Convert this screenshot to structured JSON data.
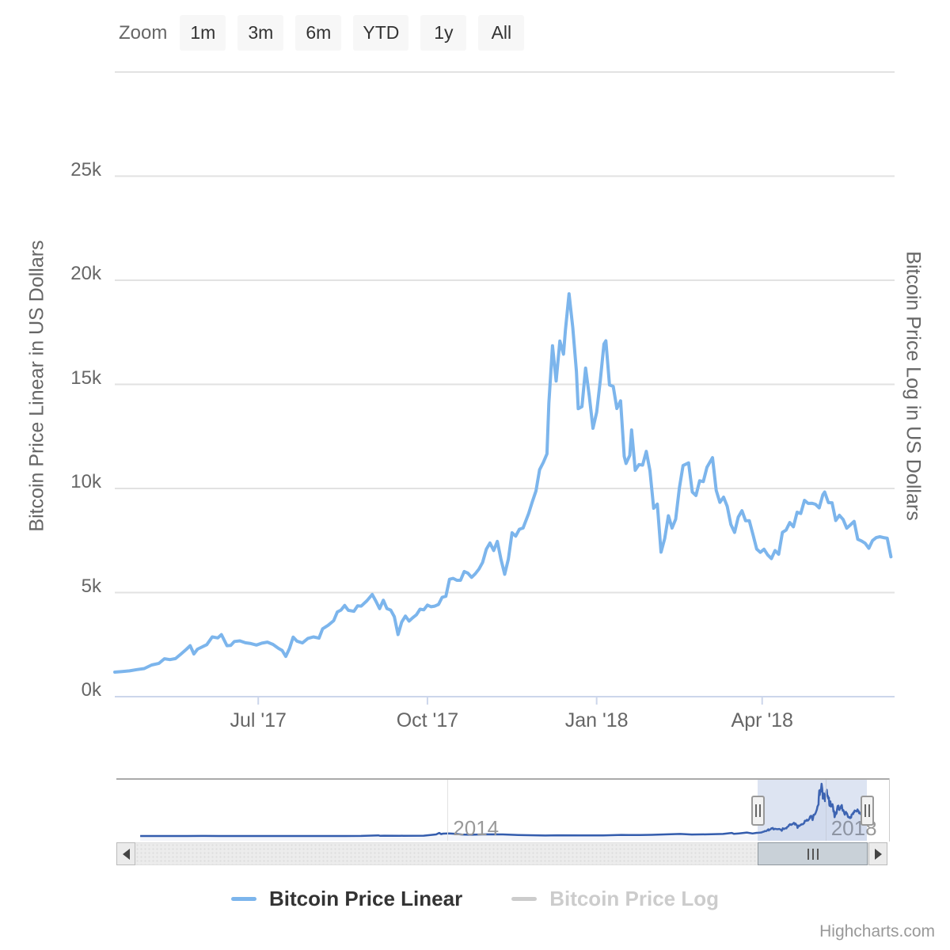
{
  "toolbar": {
    "zoom_label": "Zoom",
    "buttons": [
      "1m",
      "3m",
      "6m",
      "YTD",
      "1y",
      "All"
    ]
  },
  "legend": {
    "items": [
      {
        "label": "Bitcoin Price Linear",
        "color": "#7cb5ec",
        "text_color": "#333333",
        "enabled": true
      },
      {
        "label": "Bitcoin Price Log",
        "color": "#cccccc",
        "text_color": "#cccccc",
        "enabled": false
      }
    ]
  },
  "credits": {
    "label": "Highcharts.com"
  },
  "colors": {
    "series_line": "#7cb5ec",
    "navigator_line": "#335cad",
    "navigator_fill": "rgba(51,92,173,0.06)",
    "gridline": "#e2e2e2",
    "axis_line": "#ccd6eb",
    "label_text": "#666666"
  },
  "chart_data": {
    "type": "line",
    "title": "",
    "ylabel_left": "Bitcoin Price Linear in US Dollars",
    "ylabel_right": "Bitcoin Price Log in US Dollars",
    "y_unit": "thousand USD",
    "ylim_k": [
      0,
      30
    ],
    "y_tick_labels": [
      "0k",
      "5k",
      "10k",
      "15k",
      "20k",
      "25k"
    ],
    "y_ticks_k": [
      0,
      5,
      10,
      15,
      20,
      25
    ],
    "y_gridlines_k": [
      5,
      10,
      15,
      20,
      25,
      30
    ],
    "grid": true,
    "x_axis": {
      "range": [
        "2017-04-14",
        "2018-06-12"
      ],
      "tick_dates": [
        "2017-07-01",
        "2017-10-01",
        "2018-01-01",
        "2018-04-01"
      ],
      "tick_labels": [
        "Jul '17",
        "Oct '17",
        "Jan '18",
        "Apr '18"
      ]
    },
    "series": [
      {
        "name": "Bitcoin Price Linear",
        "color": "#7cb5ec",
        "visible": true,
        "points": [
          [
            "2017-04-14",
            1.18
          ],
          [
            "2017-04-18",
            1.21
          ],
          [
            "2017-04-22",
            1.24
          ],
          [
            "2017-04-26",
            1.3
          ],
          [
            "2017-04-30",
            1.35
          ],
          [
            "2017-05-04",
            1.52
          ],
          [
            "2017-05-08",
            1.6
          ],
          [
            "2017-05-11",
            1.82
          ],
          [
            "2017-05-14",
            1.78
          ],
          [
            "2017-05-17",
            1.83
          ],
          [
            "2017-05-20",
            2.05
          ],
          [
            "2017-05-23",
            2.28
          ],
          [
            "2017-05-25",
            2.45
          ],
          [
            "2017-05-27",
            2.05
          ],
          [
            "2017-05-29",
            2.28
          ],
          [
            "2017-06-01",
            2.41
          ],
          [
            "2017-06-03",
            2.5
          ],
          [
            "2017-06-06",
            2.87
          ],
          [
            "2017-06-09",
            2.82
          ],
          [
            "2017-06-11",
            2.98
          ],
          [
            "2017-06-14",
            2.45
          ],
          [
            "2017-06-16",
            2.46
          ],
          [
            "2017-06-18",
            2.65
          ],
          [
            "2017-06-21",
            2.68
          ],
          [
            "2017-06-24",
            2.59
          ],
          [
            "2017-06-27",
            2.55
          ],
          [
            "2017-06-30",
            2.48
          ],
          [
            "2017-07-03",
            2.57
          ],
          [
            "2017-07-06",
            2.62
          ],
          [
            "2017-07-09",
            2.51
          ],
          [
            "2017-07-12",
            2.32
          ],
          [
            "2017-07-14",
            2.22
          ],
          [
            "2017-07-16",
            1.93
          ],
          [
            "2017-07-18",
            2.32
          ],
          [
            "2017-07-20",
            2.86
          ],
          [
            "2017-07-22",
            2.67
          ],
          [
            "2017-07-25",
            2.58
          ],
          [
            "2017-07-28",
            2.8
          ],
          [
            "2017-07-31",
            2.87
          ],
          [
            "2017-08-03",
            2.81
          ],
          [
            "2017-08-05",
            3.26
          ],
          [
            "2017-08-08",
            3.43
          ],
          [
            "2017-08-11",
            3.65
          ],
          [
            "2017-08-13",
            4.07
          ],
          [
            "2017-08-15",
            4.16
          ],
          [
            "2017-08-17",
            4.38
          ],
          [
            "2017-08-19",
            4.15
          ],
          [
            "2017-08-22",
            4.1
          ],
          [
            "2017-08-24",
            4.36
          ],
          [
            "2017-08-26",
            4.35
          ],
          [
            "2017-08-29",
            4.6
          ],
          [
            "2017-09-01",
            4.91
          ],
          [
            "2017-09-03",
            4.58
          ],
          [
            "2017-09-05",
            4.23
          ],
          [
            "2017-09-07",
            4.63
          ],
          [
            "2017-09-09",
            4.23
          ],
          [
            "2017-09-11",
            4.16
          ],
          [
            "2017-09-13",
            3.84
          ],
          [
            "2017-09-15",
            2.98
          ],
          [
            "2017-09-17",
            3.58
          ],
          [
            "2017-09-19",
            3.87
          ],
          [
            "2017-09-21",
            3.63
          ],
          [
            "2017-09-23",
            3.79
          ],
          [
            "2017-09-25",
            3.93
          ],
          [
            "2017-09-27",
            4.2
          ],
          [
            "2017-09-29",
            4.17
          ],
          [
            "2017-10-01",
            4.4
          ],
          [
            "2017-10-03",
            4.32
          ],
          [
            "2017-10-05",
            4.35
          ],
          [
            "2017-10-07",
            4.43
          ],
          [
            "2017-10-09",
            4.77
          ],
          [
            "2017-10-11",
            4.82
          ],
          [
            "2017-10-13",
            5.64
          ],
          [
            "2017-10-15",
            5.68
          ],
          [
            "2017-10-17",
            5.59
          ],
          [
            "2017-10-19",
            5.59
          ],
          [
            "2017-10-21",
            6.01
          ],
          [
            "2017-10-23",
            5.93
          ],
          [
            "2017-10-25",
            5.73
          ],
          [
            "2017-10-27",
            5.9
          ],
          [
            "2017-10-29",
            6.13
          ],
          [
            "2017-10-31",
            6.45
          ],
          [
            "2017-11-02",
            7.08
          ],
          [
            "2017-11-04",
            7.38
          ],
          [
            "2017-11-06",
            7.02
          ],
          [
            "2017-11-08",
            7.46
          ],
          [
            "2017-11-10",
            6.58
          ],
          [
            "2017-11-12",
            5.88
          ],
          [
            "2017-11-14",
            6.6
          ],
          [
            "2017-11-16",
            7.87
          ],
          [
            "2017-11-18",
            7.71
          ],
          [
            "2017-11-20",
            8.04
          ],
          [
            "2017-11-22",
            8.1
          ],
          [
            "2017-11-25",
            8.79
          ],
          [
            "2017-11-27",
            9.35
          ],
          [
            "2017-11-29",
            9.88
          ],
          [
            "2017-12-01",
            10.9
          ],
          [
            "2017-12-03",
            11.25
          ],
          [
            "2017-12-05",
            11.66
          ],
          [
            "2017-12-06",
            14.09
          ],
          [
            "2017-12-08",
            16.85
          ],
          [
            "2017-12-10",
            15.16
          ],
          [
            "2017-12-12",
            17.08
          ],
          [
            "2017-12-14",
            16.45
          ],
          [
            "2017-12-15",
            17.6
          ],
          [
            "2017-12-17",
            19.35
          ],
          [
            "2017-12-19",
            17.73
          ],
          [
            "2017-12-21",
            15.63
          ],
          [
            "2017-12-22",
            13.83
          ],
          [
            "2017-12-24",
            13.93
          ],
          [
            "2017-12-26",
            15.78
          ],
          [
            "2017-12-28",
            14.43
          ],
          [
            "2017-12-30",
            12.89
          ],
          [
            "2018-01-01",
            13.66
          ],
          [
            "2018-01-03",
            15.2
          ],
          [
            "2018-01-05",
            16.94
          ],
          [
            "2018-01-06",
            17.09
          ],
          [
            "2018-01-08",
            14.97
          ],
          [
            "2018-01-10",
            14.9
          ],
          [
            "2018-01-12",
            13.84
          ],
          [
            "2018-01-14",
            14.21
          ],
          [
            "2018-01-16",
            11.54
          ],
          [
            "2018-01-17",
            11.2
          ],
          [
            "2018-01-19",
            11.59
          ],
          [
            "2018-01-20",
            12.81
          ],
          [
            "2018-01-22",
            10.87
          ],
          [
            "2018-01-24",
            11.15
          ],
          [
            "2018-01-26",
            11.12
          ],
          [
            "2018-01-28",
            11.78
          ],
          [
            "2018-01-30",
            10.85
          ],
          [
            "2018-02-01",
            9.05
          ],
          [
            "2018-02-03",
            9.25
          ],
          [
            "2018-02-05",
            6.94
          ],
          [
            "2018-02-07",
            7.59
          ],
          [
            "2018-02-09",
            8.69
          ],
          [
            "2018-02-11",
            8.1
          ],
          [
            "2018-02-13",
            8.53
          ],
          [
            "2018-02-15",
            10.03
          ],
          [
            "2018-02-17",
            11.1
          ],
          [
            "2018-02-20",
            11.23
          ],
          [
            "2018-02-22",
            9.83
          ],
          [
            "2018-02-24",
            9.66
          ],
          [
            "2018-02-26",
            10.37
          ],
          [
            "2018-02-28",
            10.33
          ],
          [
            "2018-03-02",
            11.02
          ],
          [
            "2018-03-05",
            11.48
          ],
          [
            "2018-03-07",
            9.91
          ],
          [
            "2018-03-09",
            9.33
          ],
          [
            "2018-03-11",
            9.58
          ],
          [
            "2018-03-13",
            9.14
          ],
          [
            "2018-03-15",
            8.27
          ],
          [
            "2018-03-17",
            7.89
          ],
          [
            "2018-03-19",
            8.62
          ],
          [
            "2018-03-21",
            8.93
          ],
          [
            "2018-03-23",
            8.45
          ],
          [
            "2018-03-25",
            8.45
          ],
          [
            "2018-03-27",
            7.79
          ],
          [
            "2018-03-29",
            7.09
          ],
          [
            "2018-03-31",
            6.93
          ],
          [
            "2018-04-02",
            7.08
          ],
          [
            "2018-04-04",
            6.81
          ],
          [
            "2018-04-06",
            6.63
          ],
          [
            "2018-04-08",
            7.02
          ],
          [
            "2018-04-10",
            6.84
          ],
          [
            "2018-04-12",
            7.89
          ],
          [
            "2018-04-14",
            8.0
          ],
          [
            "2018-04-16",
            8.36
          ],
          [
            "2018-04-18",
            8.16
          ],
          [
            "2018-04-20",
            8.86
          ],
          [
            "2018-04-22",
            8.8
          ],
          [
            "2018-04-24",
            9.43
          ],
          [
            "2018-04-26",
            9.28
          ],
          [
            "2018-04-28",
            9.29
          ],
          [
            "2018-04-30",
            9.24
          ],
          [
            "2018-05-02",
            9.07
          ],
          [
            "2018-05-04",
            9.7
          ],
          [
            "2018-05-05",
            9.83
          ],
          [
            "2018-05-07",
            9.32
          ],
          [
            "2018-05-09",
            9.31
          ],
          [
            "2018-05-11",
            8.46
          ],
          [
            "2018-05-13",
            8.71
          ],
          [
            "2018-05-15",
            8.51
          ],
          [
            "2018-05-17",
            8.09
          ],
          [
            "2018-05-19",
            8.25
          ],
          [
            "2018-05-21",
            8.42
          ],
          [
            "2018-05-23",
            7.56
          ],
          [
            "2018-05-25",
            7.48
          ],
          [
            "2018-05-27",
            7.37
          ],
          [
            "2018-05-29",
            7.13
          ],
          [
            "2018-05-31",
            7.5
          ],
          [
            "2018-06-02",
            7.64
          ],
          [
            "2018-06-04",
            7.68
          ],
          [
            "2018-06-06",
            7.64
          ],
          [
            "2018-06-08",
            7.61
          ],
          [
            "2018-06-10",
            6.72
          ]
        ]
      },
      {
        "name": "Bitcoin Price Log",
        "color": "#cccccc",
        "visible": false,
        "points": []
      }
    ],
    "navigator": {
      "range": [
        "2010-07-01",
        "2018-06-10"
      ],
      "selected_range": [
        "2017-04-14",
        "2018-06-10"
      ],
      "year_labels": [
        {
          "text": "2014",
          "date": "2014-01-01"
        },
        {
          "text": "2018",
          "date": "2018-01-01"
        }
      ],
      "history_points": [
        [
          "2010-10-01",
          0.0001
        ],
        [
          "2011-01-01",
          0.0003
        ],
        [
          "2011-04-01",
          0.0008
        ],
        [
          "2011-06-08",
          0.031
        ],
        [
          "2011-08-01",
          0.008
        ],
        [
          "2011-12-01",
          0.003
        ],
        [
          "2012-03-01",
          0.005
        ],
        [
          "2012-08-01",
          0.011
        ],
        [
          "2012-12-01",
          0.013
        ],
        [
          "2013-02-01",
          0.02
        ],
        [
          "2013-04-09",
          0.23
        ],
        [
          "2013-04-16",
          0.07
        ],
        [
          "2013-05-01",
          0.12
        ],
        [
          "2013-07-01",
          0.09
        ],
        [
          "2013-10-01",
          0.13
        ],
        [
          "2013-11-18",
          0.6
        ],
        [
          "2013-11-30",
          1.13
        ],
        [
          "2013-12-07",
          0.7
        ],
        [
          "2013-12-15",
          0.87
        ],
        [
          "2014-01-06",
          0.95
        ],
        [
          "2014-02-01",
          0.8
        ],
        [
          "2014-02-25",
          0.55
        ],
        [
          "2014-04-01",
          0.46
        ],
        [
          "2014-06-01",
          0.63
        ],
        [
          "2014-08-01",
          0.59
        ],
        [
          "2014-10-01",
          0.38
        ],
        [
          "2015-01-14",
          0.18
        ],
        [
          "2015-03-01",
          0.27
        ],
        [
          "2015-06-01",
          0.23
        ],
        [
          "2015-08-24",
          0.21
        ],
        [
          "2015-11-04",
          0.4
        ],
        [
          "2015-12-01",
          0.36
        ],
        [
          "2016-01-15",
          0.36
        ],
        [
          "2016-03-01",
          0.43
        ],
        [
          "2016-06-18",
          0.76
        ],
        [
          "2016-08-02",
          0.55
        ],
        [
          "2016-10-01",
          0.61
        ],
        [
          "2016-12-01",
          0.75
        ],
        [
          "2017-01-04",
          1.13
        ],
        [
          "2017-01-12",
          0.78
        ],
        [
          "2017-02-01",
          0.98
        ],
        [
          "2017-03-03",
          1.28
        ],
        [
          "2017-03-25",
          0.94
        ],
        [
          "2017-04-10",
          1.16
        ]
      ]
    }
  }
}
